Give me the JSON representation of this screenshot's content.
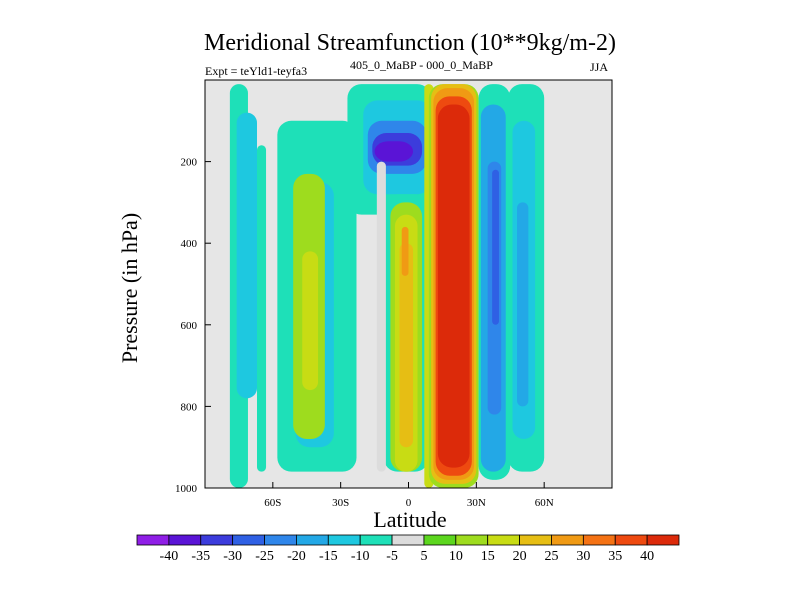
{
  "chart_data": {
    "type": "heatmap",
    "title": "Meridional Streamfunction (10**9kg/m-2)",
    "experiment_label": "Expt = teYld1-teyfa3",
    "period_label": "405_0_MaBP - 000_0_MaBP",
    "season": "JJA",
    "xlabel": "Latitude",
    "ylabel": "Pressure (in hPa)",
    "xlim": [
      -90,
      90
    ],
    "ylim": [
      1000,
      0
    ],
    "x_ticks": [
      {
        "value": -60,
        "label": "60S"
      },
      {
        "value": -30,
        "label": "30S"
      },
      {
        "value": 0,
        "label": "0"
      },
      {
        "value": 30,
        "label": "30N"
      },
      {
        "value": 60,
        "label": "60N"
      }
    ],
    "y_ticks": [
      {
        "value": 200,
        "label": "200"
      },
      {
        "value": 400,
        "label": "400"
      },
      {
        "value": 600,
        "label": "600"
      },
      {
        "value": 800,
        "label": "800"
      },
      {
        "value": 1000,
        "label": "1000"
      }
    ],
    "colorbar": {
      "levels": [
        -40,
        -35,
        -30,
        -25,
        -20,
        -15,
        -10,
        -5,
        5,
        10,
        15,
        20,
        25,
        30,
        35,
        40
      ],
      "colors": [
        "#8f1ee6",
        "#5a14d6",
        "#3c3cdc",
        "#2f60e4",
        "#2f86ea",
        "#23a8e6",
        "#1ec8e0",
        "#1ee0b8",
        "#dcdcdc",
        "#5cd61e",
        "#9edc1e",
        "#c8dc14",
        "#e6be14",
        "#f09a14",
        "#f47214",
        "#ee4a10",
        "#dc2a0a"
      ]
    },
    "cells": [
      {
        "lat": [
          -79,
          -71
        ],
        "p": [
          10,
          1000
        ],
        "value": -10
      },
      {
        "lat": [
          -76,
          -67
        ],
        "p": [
          80,
          780
        ],
        "value": -15
      },
      {
        "lat": [
          -67,
          -63
        ],
        "p": [
          160,
          960
        ],
        "value": -10
      },
      {
        "lat": [
          -58,
          -23
        ],
        "p": [
          100,
          960
        ],
        "value": -10
      },
      {
        "lat": [
          -50,
          -33
        ],
        "p": [
          250,
          900
        ],
        "value": -15
      },
      {
        "lat": [
          -51,
          -37
        ],
        "p": [
          230,
          880
        ],
        "value": 10
      },
      {
        "lat": [
          -47,
          -40
        ],
        "p": [
          420,
          760
        ],
        "value": 15
      },
      {
        "lat": [
          -27,
          10
        ],
        "p": [
          10,
          330
        ],
        "value": -10
      },
      {
        "lat": [
          -20,
          10
        ],
        "p": [
          50,
          280
        ],
        "value": -15
      },
      {
        "lat": [
          -18,
          8
        ],
        "p": [
          100,
          230
        ],
        "value": -25
      },
      {
        "lat": [
          -16,
          6
        ],
        "p": [
          130,
          210
        ],
        "value": -35
      },
      {
        "lat": [
          -15,
          2
        ],
        "p": [
          150,
          200
        ],
        "value": -40
      },
      {
        "lat": [
          -11,
          9
        ],
        "p": [
          280,
          960
        ],
        "value": -10
      },
      {
        "lat": [
          -8,
          6
        ],
        "p": [
          300,
          960
        ],
        "value": 10
      },
      {
        "lat": [
          -6,
          4
        ],
        "p": [
          330,
          960
        ],
        "value": 15
      },
      {
        "lat": [
          -4,
          2
        ],
        "p": [
          400,
          900
        ],
        "value": 20
      },
      {
        "lat": [
          -3,
          0
        ],
        "p": [
          360,
          480
        ],
        "value": 25
      },
      {
        "lat": [
          -14,
          -10
        ],
        "p": [
          200,
          960
        ],
        "value": -5
      },
      {
        "lat": [
          7,
          11
        ],
        "p": [
          10,
          1000
        ],
        "value": 15
      },
      {
        "lat": [
          9,
          31
        ],
        "p": [
          10,
          1000
        ],
        "value": 10
      },
      {
        "lat": [
          10,
          30
        ],
        "p": [
          10,
          990
        ],
        "value": 20
      },
      {
        "lat": [
          11,
          29
        ],
        "p": [
          20,
          980
        ],
        "value": 25
      },
      {
        "lat": [
          12,
          28
        ],
        "p": [
          40,
          970
        ],
        "value": 35
      },
      {
        "lat": [
          13,
          27
        ],
        "p": [
          60,
          950
        ],
        "value": 40
      },
      {
        "lat": [
          31,
          45
        ],
        "p": [
          10,
          980
        ],
        "value": -10
      },
      {
        "lat": [
          32,
          43
        ],
        "p": [
          60,
          960
        ],
        "value": -20
      },
      {
        "lat": [
          35,
          41
        ],
        "p": [
          200,
          820
        ],
        "value": -25
      },
      {
        "lat": [
          37,
          40
        ],
        "p": [
          220,
          600
        ],
        "value": -30
      },
      {
        "lat": [
          44,
          60
        ],
        "p": [
          10,
          960
        ],
        "value": -10
      },
      {
        "lat": [
          46,
          56
        ],
        "p": [
          100,
          880
        ],
        "value": -15
      },
      {
        "lat": [
          48,
          53
        ],
        "p": [
          300,
          800
        ],
        "value": -20
      }
    ]
  }
}
